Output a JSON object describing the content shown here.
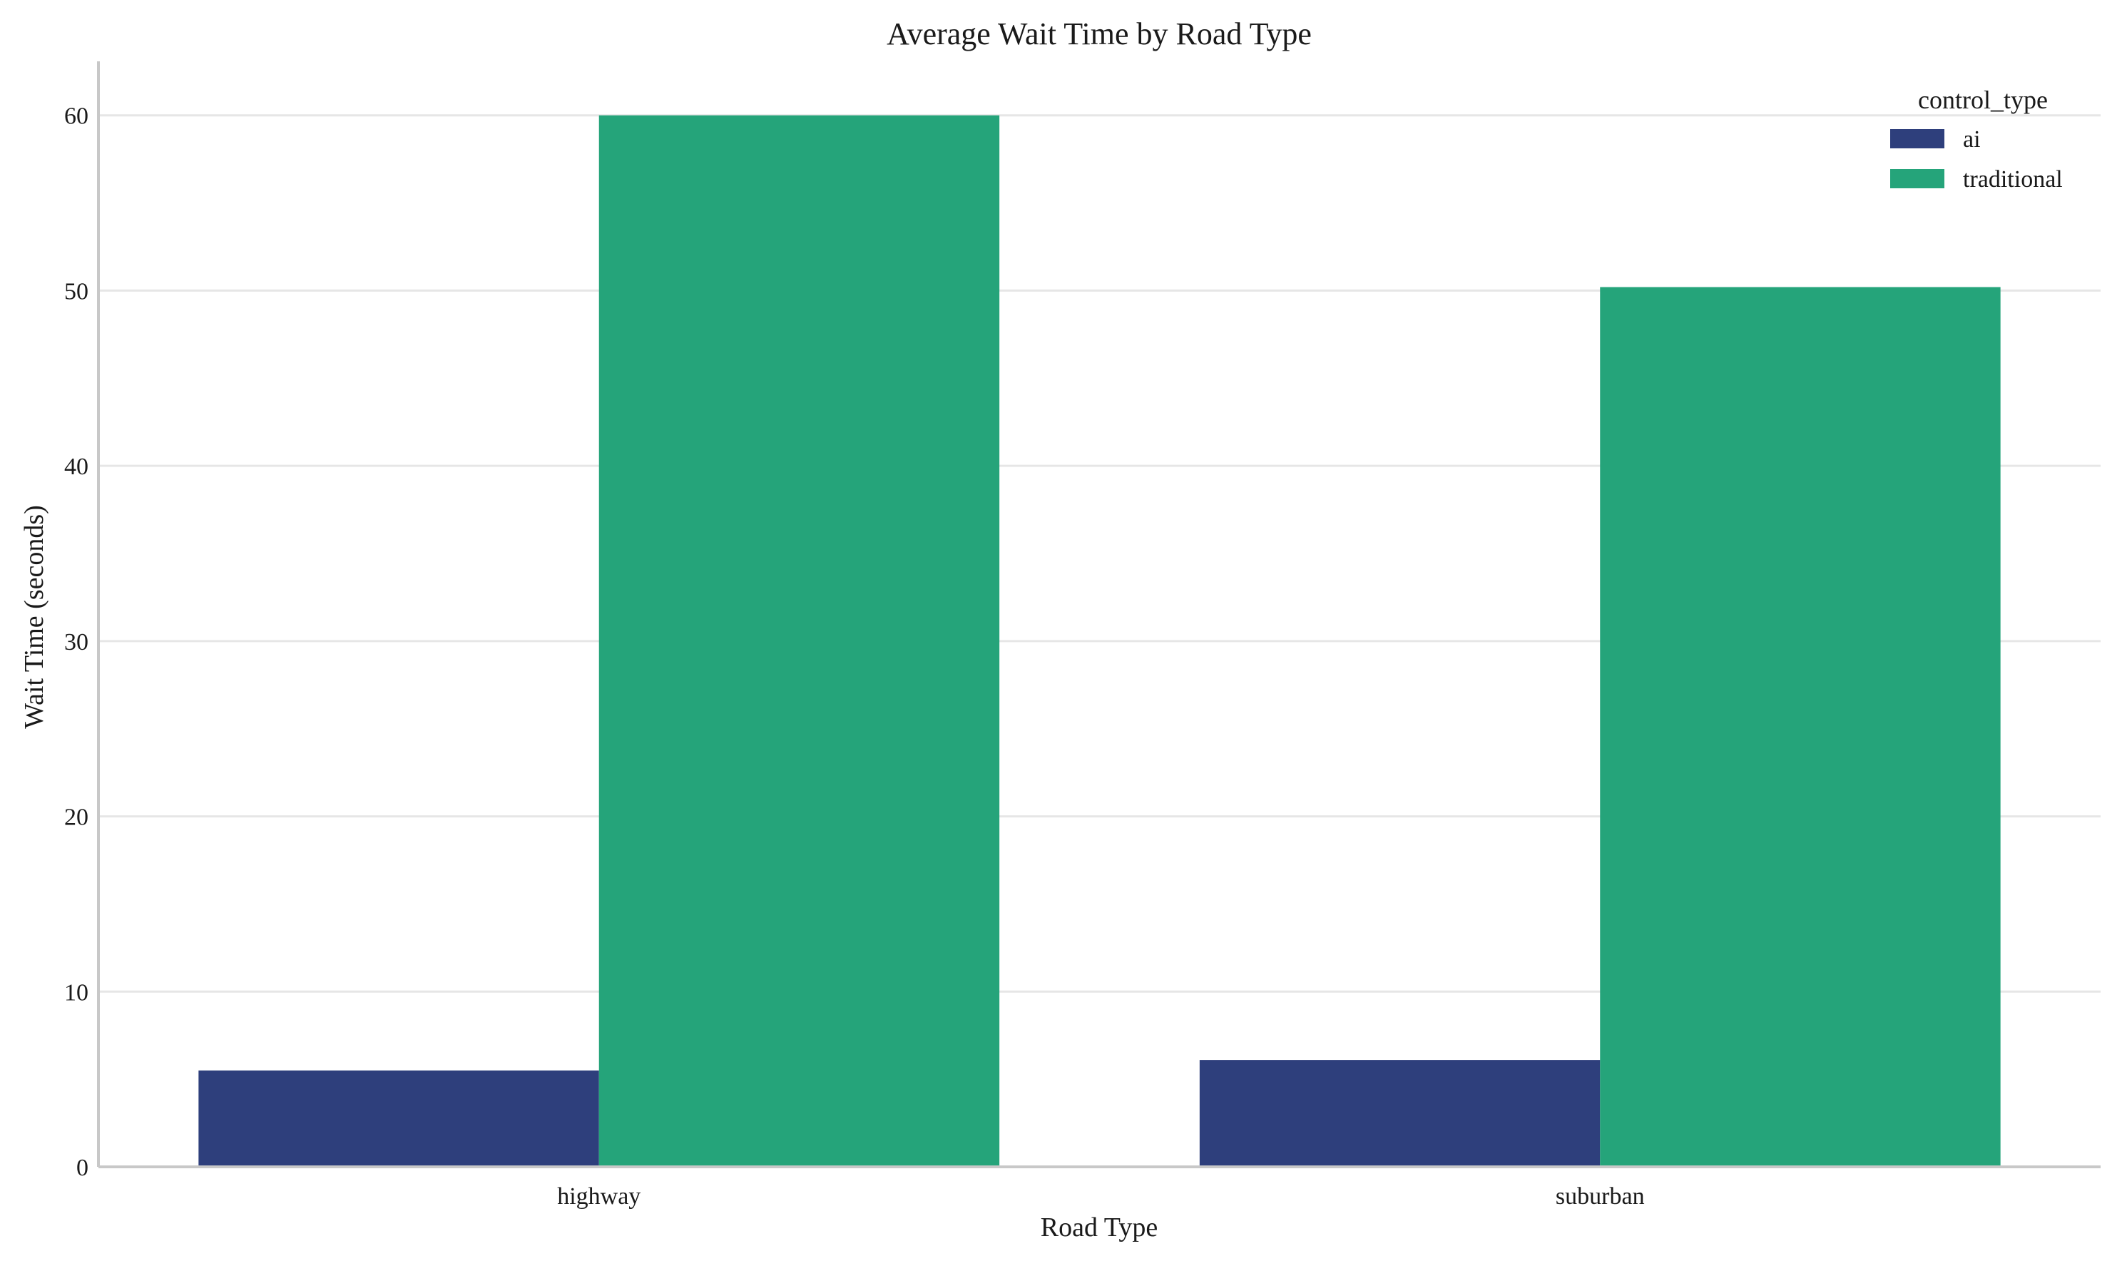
{
  "chart_data": {
    "type": "bar",
    "title": "Average Wait Time by Road Type",
    "xlabel": "Road Type",
    "ylabel": "Wait Time (seconds)",
    "categories": [
      "highway",
      "suburban"
    ],
    "series": [
      {
        "name": "ai",
        "values": [
          5.5,
          6.1
        ],
        "color": "#2e3f7c"
      },
      {
        "name": "traditional",
        "values": [
          60.0,
          50.2
        ],
        "color": "#25a47a"
      }
    ],
    "ylim": [
      0,
      63
    ],
    "yticks": [
      0,
      10,
      20,
      30,
      40,
      50,
      60
    ],
    "grid": true,
    "legend": {
      "title": "control_type",
      "placement": "top-right"
    }
  }
}
